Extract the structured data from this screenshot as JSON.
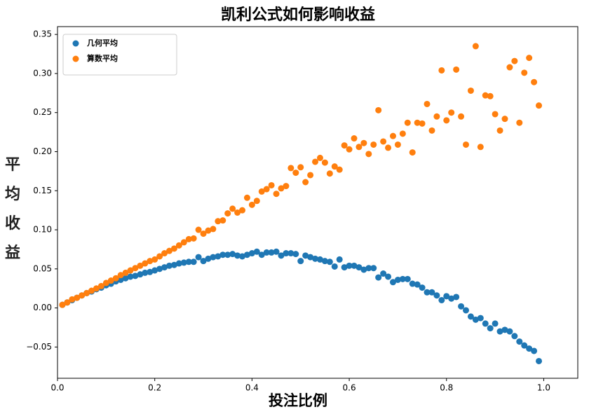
{
  "chart_data": {
    "type": "scatter",
    "title": "凯利公式如何影响收益",
    "x_label": "投注比例",
    "y_label": "平均收益",
    "x": [
      0.01,
      0.02,
      0.03,
      0.04,
      0.05,
      0.06,
      0.07,
      0.08,
      0.09,
      0.1,
      0.11,
      0.12,
      0.13,
      0.14,
      0.15,
      0.16,
      0.17,
      0.18,
      0.19,
      0.2,
      0.21,
      0.22,
      0.23,
      0.24,
      0.25,
      0.26,
      0.27,
      0.28,
      0.29,
      0.3,
      0.31,
      0.32,
      0.33,
      0.34,
      0.35,
      0.36,
      0.37,
      0.38,
      0.39,
      0.4,
      0.41,
      0.42,
      0.43,
      0.44,
      0.45,
      0.46,
      0.47,
      0.48,
      0.49,
      0.5,
      0.51,
      0.52,
      0.53,
      0.54,
      0.55,
      0.56,
      0.57,
      0.58,
      0.59,
      0.6,
      0.61,
      0.62,
      0.63,
      0.64,
      0.65,
      0.66,
      0.67,
      0.68,
      0.69,
      0.7,
      0.71,
      0.72,
      0.73,
      0.74,
      0.75,
      0.76,
      0.77,
      0.78,
      0.79,
      0.8,
      0.81,
      0.82,
      0.83,
      0.84,
      0.85,
      0.86,
      0.87,
      0.88,
      0.89,
      0.9,
      0.91,
      0.92,
      0.93,
      0.94,
      0.95,
      0.96,
      0.97,
      0.98,
      0.99
    ],
    "series": [
      {
        "name": "几何平均",
        "color": "#1f77b4",
        "values": [
          0.004,
          0.007,
          0.01,
          0.013,
          0.016,
          0.019,
          0.021,
          0.024,
          0.026,
          0.029,
          0.031,
          0.034,
          0.036,
          0.038,
          0.04,
          0.041,
          0.043,
          0.045,
          0.046,
          0.048,
          0.05,
          0.052,
          0.054,
          0.055,
          0.057,
          0.058,
          0.059,
          0.059,
          0.065,
          0.06,
          0.063,
          0.065,
          0.066,
          0.068,
          0.068,
          0.069,
          0.067,
          0.066,
          0.068,
          0.07,
          0.072,
          0.068,
          0.071,
          0.071,
          0.072,
          0.067,
          0.07,
          0.07,
          0.069,
          0.06,
          0.067,
          0.065,
          0.063,
          0.062,
          0.06,
          0.059,
          0.053,
          0.062,
          0.052,
          0.054,
          0.054,
          0.052,
          0.049,
          0.051,
          0.051,
          0.039,
          0.044,
          0.04,
          0.033,
          0.036,
          0.037,
          0.037,
          0.031,
          0.03,
          0.026,
          0.02,
          0.02,
          0.016,
          0.01,
          0.015,
          0.012,
          0.014,
          0.002,
          -0.003,
          -0.011,
          -0.015,
          -0.013,
          -0.02,
          -0.026,
          -0.02,
          -0.03,
          -0.028,
          -0.03,
          -0.036,
          -0.043,
          -0.048,
          -0.052,
          -0.055,
          -0.068
        ]
      },
      {
        "name": "算数平均",
        "color": "#ff7f0e",
        "values": [
          0.004,
          0.007,
          0.011,
          0.013,
          0.016,
          0.019,
          0.022,
          0.025,
          0.028,
          0.032,
          0.035,
          0.038,
          0.042,
          0.045,
          0.048,
          0.051,
          0.054,
          0.057,
          0.06,
          0.062,
          0.066,
          0.07,
          0.073,
          0.076,
          0.08,
          0.084,
          0.088,
          0.089,
          0.1,
          0.095,
          0.099,
          0.101,
          0.111,
          0.112,
          0.121,
          0.127,
          0.122,
          0.125,
          0.141,
          0.132,
          0.137,
          0.149,
          0.152,
          0.157,
          0.146,
          0.153,
          0.156,
          0.179,
          0.173,
          0.18,
          0.161,
          0.17,
          0.187,
          0.192,
          0.186,
          0.172,
          0.181,
          0.177,
          0.208,
          0.203,
          0.217,
          0.206,
          0.211,
          0.197,
          0.209,
          0.253,
          0.213,
          0.205,
          0.22,
          0.209,
          0.223,
          0.237,
          0.199,
          0.237,
          0.236,
          0.261,
          0.227,
          0.245,
          0.304,
          0.24,
          0.25,
          0.305,
          0.245,
          0.209,
          0.278,
          0.335,
          0.206,
          0.272,
          0.271,
          0.248,
          0.227,
          0.242,
          0.308,
          0.316,
          0.237,
          0.301,
          0.32,
          0.289,
          0.259
        ]
      }
    ],
    "xlim": [
      0,
      1.07
    ],
    "xticks": [
      {
        "value": 0,
        "label": "0.0"
      },
      0.2,
      0.4,
      0.6,
      0.8,
      {
        "value": 1,
        "label": "1.0"
      }
    ],
    "ylim": [
      -0.09,
      0.36
    ],
    "yticks": [
      {
        "value": -0.05,
        "label": "−0.05"
      },
      {
        "value": 0,
        "label": "0.00"
      },
      {
        "value": 0.05,
        "label": "0.05"
      },
      {
        "value": 0.1,
        "label": "0.10"
      },
      0.15,
      {
        "value": 0.2,
        "label": "0.20"
      },
      0.25,
      {
        "value": 0.3,
        "label": "0.30"
      },
      0.35
    ],
    "grid": false,
    "legend": "upper-left"
  }
}
